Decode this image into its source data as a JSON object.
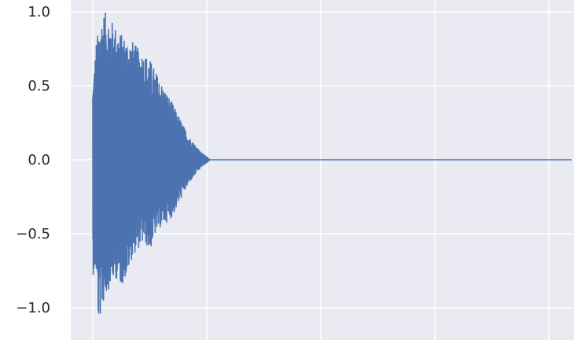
{
  "chart_data": {
    "type": "line",
    "title": "",
    "xlabel": "",
    "ylabel": "",
    "ylim": [
      -1.15,
      1.0
    ],
    "yticks": [
      {
        "value": 1.0,
        "label": "1.0"
      },
      {
        "value": 0.5,
        "label": "0.5"
      },
      {
        "value": 0.0,
        "label": "0.0"
      },
      {
        "value": -0.5,
        "label": "−0.5"
      },
      {
        "value": -1.0,
        "label": "−1.0"
      }
    ],
    "xticks": [
      0,
      1,
      2,
      3,
      4
    ],
    "x_tick_labels_visible": false,
    "grid": true,
    "background_color": "#EAEAF2",
    "grid_color": "#FFFFFF",
    "series": [
      {
        "color": "#4C72B0",
        "description_type": "decaying waveform",
        "envelope": {
          "upper": [
            [
              0.0,
              0.5
            ],
            [
              0.03,
              0.8
            ],
            [
              0.07,
              0.95
            ],
            [
              0.1,
              1.0
            ],
            [
              0.15,
              0.96
            ],
            [
              0.2,
              0.9
            ],
            [
              0.25,
              0.85
            ],
            [
              0.3,
              0.82
            ],
            [
              0.35,
              0.8
            ],
            [
              0.4,
              0.75
            ],
            [
              0.45,
              0.72
            ],
            [
              0.5,
              0.68
            ],
            [
              0.55,
              0.6
            ],
            [
              0.6,
              0.52
            ],
            [
              0.65,
              0.45
            ],
            [
              0.7,
              0.38
            ],
            [
              0.75,
              0.3
            ],
            [
              0.8,
              0.22
            ],
            [
              0.85,
              0.15
            ],
            [
              0.9,
              0.1
            ],
            [
              0.95,
              0.05
            ],
            [
              1.0,
              0.02
            ],
            [
              1.03,
              0.0
            ],
            [
              4.2,
              0.0
            ]
          ],
          "lower": [
            [
              0.0,
              -0.78
            ],
            [
              0.03,
              -0.75
            ],
            [
              0.05,
              -1.12
            ],
            [
              0.1,
              -0.95
            ],
            [
              0.15,
              -0.85
            ],
            [
              0.2,
              -0.8
            ],
            [
              0.25,
              -0.85
            ],
            [
              0.3,
              -0.78
            ],
            [
              0.35,
              -0.65
            ],
            [
              0.4,
              -0.6
            ],
            [
              0.45,
              -0.55
            ],
            [
              0.5,
              -0.62
            ],
            [
              0.55,
              -0.5
            ],
            [
              0.6,
              -0.45
            ],
            [
              0.65,
              -0.42
            ],
            [
              0.7,
              -0.38
            ],
            [
              0.75,
              -0.3
            ],
            [
              0.8,
              -0.22
            ],
            [
              0.85,
              -0.15
            ],
            [
              0.9,
              -0.1
            ],
            [
              0.95,
              -0.05
            ],
            [
              1.0,
              -0.02
            ],
            [
              1.03,
              0.0
            ],
            [
              4.2,
              0.0
            ]
          ]
        }
      }
    ],
    "xlim": [
      -0.2,
      4.2
    ]
  }
}
